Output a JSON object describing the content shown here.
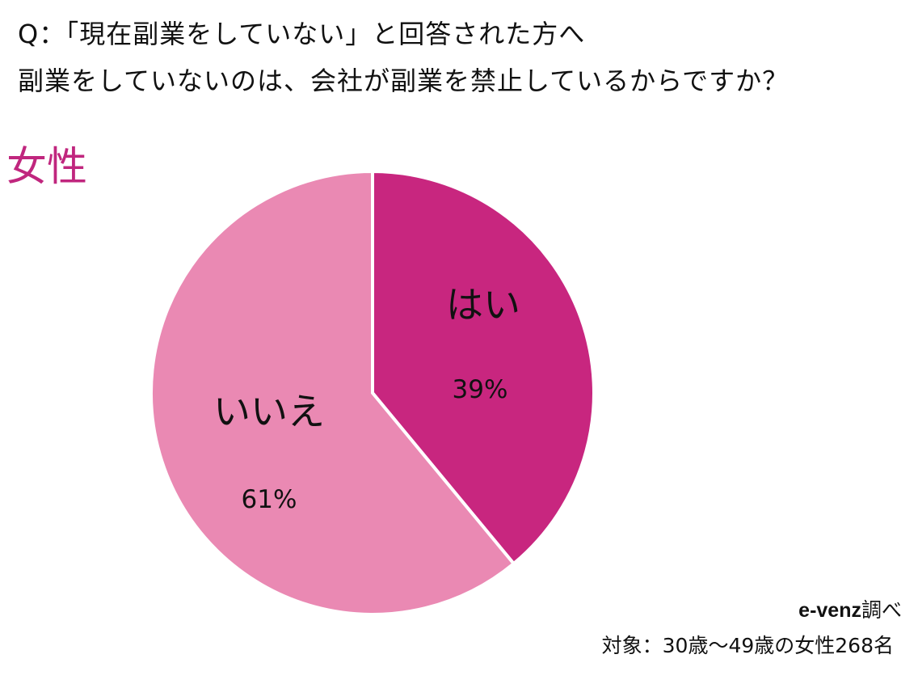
{
  "question": {
    "line1": "Q：「現在副業をしていない」と回答された方へ",
    "line2": "副業をしていないのは、会社が副業を禁止しているからですか？"
  },
  "group_label": "女性",
  "colors": {
    "group_label": "#c0267e",
    "yes": "#c8267f",
    "no": "#ea89b3",
    "border": "#ffffff"
  },
  "chart_data": {
    "type": "pie",
    "categories": [
      "はい",
      "いいえ"
    ],
    "values": [
      39,
      61
    ],
    "value_labels": [
      "39%",
      "61%"
    ],
    "unit": "%",
    "start": "12 o'clock, clockwise"
  },
  "source": {
    "brand": "e-venz",
    "suffix": "調べ",
    "target": "対象：30歳〜49歳の女性268名"
  }
}
